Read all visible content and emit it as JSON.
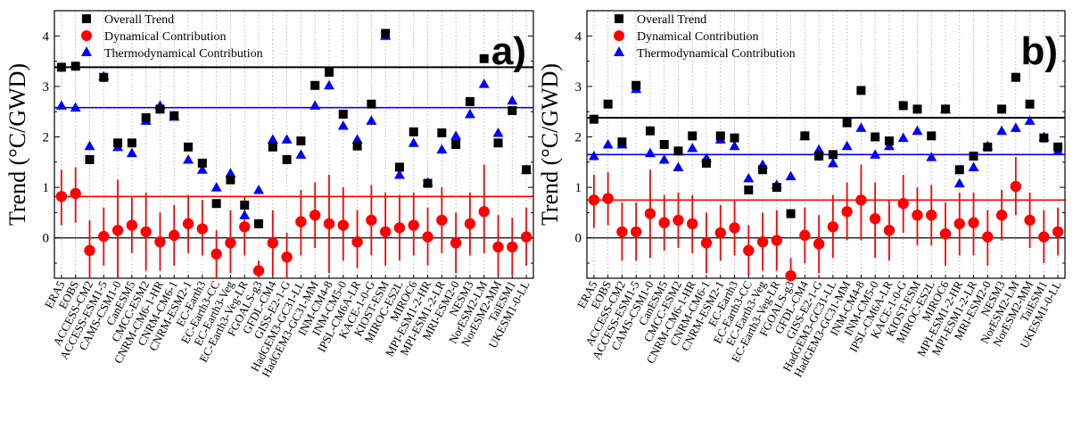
{
  "chart_data": [
    {
      "type": "scatter",
      "panel_label": "a)",
      "ylabel": "Trend (°C/GWD)",
      "ylim": [
        -0.8,
        4.5
      ],
      "yticks": [
        0,
        1,
        2,
        3,
        4
      ],
      "grid": "vertical dotted",
      "legend_position": "top-left",
      "categories": [
        "ERA5",
        "EOBS",
        "ACCESS-CM2",
        "ACCESS-ESM1-5",
        "CAMS-CSM1-0",
        "CanESM5",
        "CMCC-ESM2",
        "CNRM-CM6-1-HR",
        "CNRM-CM6-1",
        "CNRM-ESM2-1",
        "EC-Earth3",
        "EC-Earth3-CC",
        "EC-Earth3-Veg",
        "EC-Earth3-Veg-LR",
        "FGOALS-g3",
        "GFDL-CM4",
        "GISS-E2-1-G",
        "HadGEM3-GC31-LL",
        "HadGEM3-GC31-MM",
        "INM-CM4-8",
        "INM-CM5-0",
        "IPSL-CM6A-LR",
        "KACE-1-0-G",
        "KIOST-ESM",
        "MIROC-ES2L",
        "MIROC6",
        "MPI-ESM1-2-HR",
        "MPI-ESM1-2-LR",
        "MRI-ESM2-0",
        "NESM3",
        "NorESM2-LM",
        "NorESM2-MM",
        "TaiESM1",
        "UKESM1-0-LL"
      ],
      "series": [
        {
          "name": "Overall Trend",
          "color": "#000000",
          "marker": "square",
          "values": [
            3.38,
            3.4,
            1.55,
            3.18,
            1.88,
            1.88,
            2.38,
            2.55,
            2.42,
            1.8,
            1.48,
            0.68,
            1.15,
            0.65,
            0.28,
            1.8,
            1.55,
            1.92,
            3.02,
            3.28,
            2.45,
            1.82,
            2.65,
            4.05,
            1.4,
            2.1,
            1.08,
            2.08,
            1.85,
            2.7,
            3.55,
            1.88,
            2.52,
            1.35
          ]
        },
        {
          "name": "Dynamical Contribution",
          "color": "#ff0000",
          "marker": "circle",
          "values": [
            0.82,
            0.88,
            -0.25,
            0.03,
            0.15,
            0.25,
            0.12,
            -0.08,
            0.05,
            0.28,
            0.18,
            -0.32,
            -0.1,
            0.22,
            -0.65,
            -0.1,
            -0.38,
            0.32,
            0.45,
            0.28,
            0.25,
            -0.08,
            0.35,
            0.12,
            0.2,
            0.25,
            0.02,
            0.35,
            -0.1,
            0.28,
            0.52,
            -0.18,
            -0.18,
            0.02
          ],
          "error_low": [
            0.25,
            0.3,
            -0.85,
            -0.55,
            -0.85,
            -0.3,
            -0.65,
            -0.65,
            -0.55,
            -0.3,
            -0.35,
            -0.8,
            -0.7,
            -0.35,
            -0.8,
            -0.75,
            -0.8,
            -0.35,
            -0.2,
            -0.7,
            -0.45,
            -0.6,
            -0.35,
            -0.55,
            -0.45,
            -0.35,
            -0.55,
            -0.3,
            -0.7,
            -0.35,
            -0.3,
            -0.75,
            -0.75,
            -0.55
          ],
          "error_high": [
            1.35,
            1.4,
            0.35,
            0.6,
            1.15,
            0.8,
            0.9,
            0.5,
            0.65,
            0.85,
            0.75,
            0.15,
            0.55,
            0.8,
            -0.45,
            0.55,
            0.1,
            0.95,
            1.1,
            1.25,
            1.0,
            0.55,
            1.05,
            0.9,
            0.85,
            0.9,
            0.6,
            1.0,
            0.5,
            0.9,
            1.45,
            0.45,
            0.4,
            0.6
          ]
        },
        {
          "name": "Thermodynamical Contribution",
          "color": "#0000ff",
          "marker": "triangle",
          "values": [
            2.62,
            2.58,
            1.82,
            3.2,
            1.8,
            1.68,
            2.32,
            2.62,
            2.4,
            1.55,
            1.35,
            1.0,
            1.28,
            0.45,
            0.95,
            1.95,
            1.95,
            1.65,
            2.62,
            3.02,
            2.22,
            1.95,
            2.32,
            4.0,
            1.25,
            1.88,
            1.1,
            1.75,
            2.02,
            2.45,
            3.05,
            2.08,
            2.72,
            1.35
          ]
        }
      ],
      "reference_lines": {
        "overall": 3.38,
        "thermodynamical": 2.58,
        "dynamical": 0.82,
        "zero": 0
      }
    },
    {
      "type": "scatter",
      "panel_label": "b)",
      "ylabel": "Trend (°C/GWD)",
      "ylim": [
        -0.8,
        4.5
      ],
      "yticks": [
        0,
        1,
        2,
        3,
        4
      ],
      "grid": "vertical dotted",
      "legend_position": "top-left",
      "categories": [
        "ERA5",
        "EOBS",
        "ACCESS-CM2",
        "ACCESS-ESM1-5",
        "CAMS-CSM1-0",
        "CanESM5",
        "CMCC-ESM2",
        "CNRM-CM6-1-HR",
        "CNRM-CM6-1",
        "CNRM-ESM2-1",
        "EC-Earth3",
        "EC-Earth3-CC",
        "EC-Earth3-Veg",
        "EC-Earth3-Veg-LR",
        "FGOALS-g3",
        "GFDL-CM4",
        "GISS-E2-1-G",
        "HadGEM3-GC31-LL",
        "HadGEM3-GC31-MM",
        "INM-CM4-8",
        "INM-CM5-0",
        "IPSL-CM6A-LR",
        "KACE-1-0-G",
        "KIOST-ESM",
        "MIROC-ES2L",
        "MIROC6",
        "MPI-ESM1-2-HR",
        "MPI-ESM1-2-LR",
        "MRI-ESM2-0",
        "NESM3",
        "NorESM2-LM",
        "NorESM2-MM",
        "TaiESM1",
        "UKESM1-0-LL"
      ],
      "series": [
        {
          "name": "Overall Trend",
          "color": "#000000",
          "marker": "square",
          "values": [
            2.35,
            2.65,
            1.9,
            3.02,
            2.12,
            1.85,
            1.72,
            2.02,
            1.48,
            2.02,
            1.98,
            0.95,
            1.35,
            1.0,
            0.48,
            2.02,
            1.62,
            1.65,
            2.28,
            2.92,
            2.0,
            1.92,
            2.62,
            2.55,
            2.02,
            2.55,
            1.35,
            1.62,
            1.8,
            2.55,
            3.18,
            2.65,
            1.98,
            1.8
          ]
        },
        {
          "name": "Dynamical Contribution",
          "color": "#ff0000",
          "marker": "circle",
          "values": [
            0.75,
            0.78,
            0.12,
            0.12,
            0.48,
            0.3,
            0.35,
            0.28,
            -0.1,
            0.1,
            0.2,
            -0.25,
            -0.08,
            -0.05,
            -0.75,
            0.05,
            -0.12,
            0.22,
            0.52,
            0.75,
            0.38,
            0.15,
            0.68,
            0.45,
            0.45,
            0.08,
            0.28,
            0.3,
            0.02,
            0.45,
            1.02,
            0.35,
            0.02,
            0.12
          ],
          "error_low": [
            0.2,
            0.25,
            -0.45,
            -0.45,
            -0.4,
            -0.25,
            -0.2,
            -0.3,
            -0.7,
            -0.45,
            -0.35,
            -0.75,
            -0.65,
            -0.65,
            -0.8,
            -0.5,
            -0.7,
            -0.4,
            -0.05,
            -0.05,
            -0.4,
            -0.45,
            0.1,
            -0.15,
            -0.15,
            -0.55,
            -0.35,
            -0.35,
            -0.55,
            -0.05,
            0.45,
            -0.2,
            -0.5,
            -0.35
          ],
          "error_high": [
            1.25,
            1.3,
            0.7,
            0.7,
            1.35,
            0.85,
            0.9,
            0.85,
            0.5,
            0.65,
            0.75,
            0.25,
            0.5,
            0.55,
            -0.4,
            0.6,
            0.45,
            0.85,
            1.1,
            1.45,
            1.1,
            0.75,
            1.25,
            1.0,
            1.05,
            0.7,
            0.9,
            0.9,
            0.55,
            0.95,
            1.6,
            0.9,
            0.55,
            0.6
          ]
        },
        {
          "name": "Thermodynamical Contribution",
          "color": "#0000ff",
          "marker": "triangle",
          "values": [
            1.62,
            1.85,
            1.85,
            2.95,
            1.68,
            1.55,
            1.4,
            1.78,
            1.58,
            1.95,
            1.82,
            1.18,
            1.45,
            1.05,
            1.22,
            2.02,
            1.75,
            1.48,
            1.82,
            2.18,
            1.65,
            1.82,
            1.98,
            2.12,
            1.6,
            2.55,
            1.08,
            1.4,
            1.82,
            2.12,
            2.18,
            2.32,
            2.0,
            1.72
          ]
        }
      ],
      "reference_lines": {
        "overall": 2.38,
        "thermodynamical": 1.65,
        "dynamical": 0.75,
        "zero": 0
      }
    }
  ]
}
